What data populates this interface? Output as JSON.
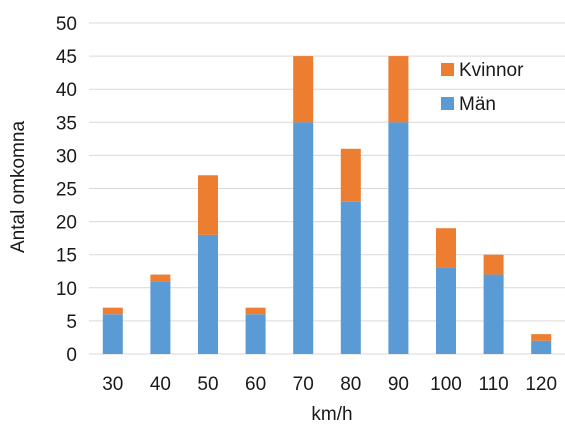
{
  "chart_data": {
    "type": "bar",
    "stacked": true,
    "categories": [
      "30",
      "40",
      "50",
      "60",
      "70",
      "80",
      "90",
      "100",
      "110",
      "120"
    ],
    "series": [
      {
        "name": "Män",
        "color": "#5B9BD5",
        "values": [
          6,
          11,
          18,
          6,
          35,
          23,
          35,
          13,
          12,
          2
        ]
      },
      {
        "name": "Kvinnor",
        "color": "#ED7D31",
        "values": [
          1,
          1,
          9,
          1,
          10,
          8,
          10,
          6,
          3,
          1
        ]
      }
    ],
    "xlabel": "km/h",
    "ylabel": "Antal omkomna",
    "ylim": [
      0,
      50
    ],
    "yticks": [
      0,
      5,
      10,
      15,
      20,
      25,
      30,
      35,
      40,
      45,
      50
    ],
    "grid": true,
    "legend_position": "top-right",
    "legend_order": [
      "Kvinnor",
      "Män"
    ]
  }
}
